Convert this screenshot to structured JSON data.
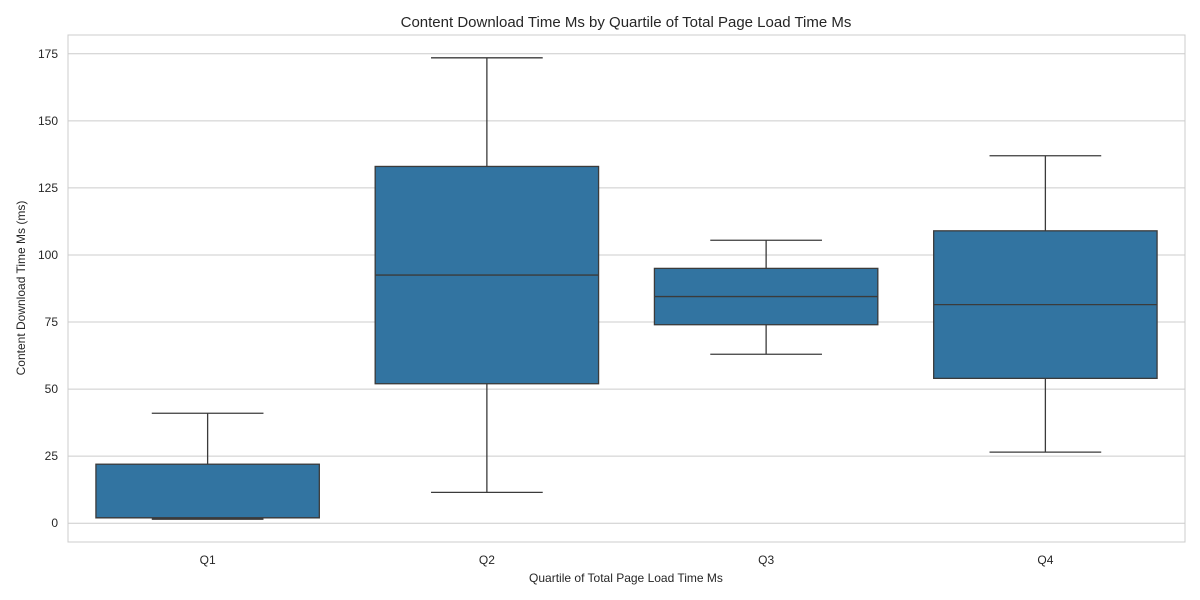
{
  "chart_data": {
    "type": "box",
    "title": "Content Download Time Ms by Quartile of Total Page Load Time Ms",
    "xlabel": "Quartile of Total Page Load Time Ms",
    "ylabel": "Content Download Time Ms (ms)",
    "ylim": [
      -7,
      182
    ],
    "yticks": [
      0,
      25,
      50,
      75,
      100,
      125,
      150,
      175
    ],
    "grid": true,
    "box_color": "#3274a1",
    "line_color": "#3b3b3b",
    "categories": [
      "Q1",
      "Q2",
      "Q3",
      "Q4"
    ],
    "boxes": [
      {
        "label": "Q1",
        "whislo": 1.5,
        "q1": 2,
        "median": 2,
        "q3": 22,
        "whishi": 41
      },
      {
        "label": "Q2",
        "whislo": 11.5,
        "q1": 52,
        "median": 92.5,
        "q3": 133,
        "whishi": 173.5
      },
      {
        "label": "Q3",
        "whislo": 63,
        "q1": 74,
        "median": 84.5,
        "q3": 95,
        "whishi": 105.5
      },
      {
        "label": "Q4",
        "whislo": 26.5,
        "q1": 54,
        "median": 81.5,
        "q3": 109,
        "whishi": 137
      }
    ]
  }
}
